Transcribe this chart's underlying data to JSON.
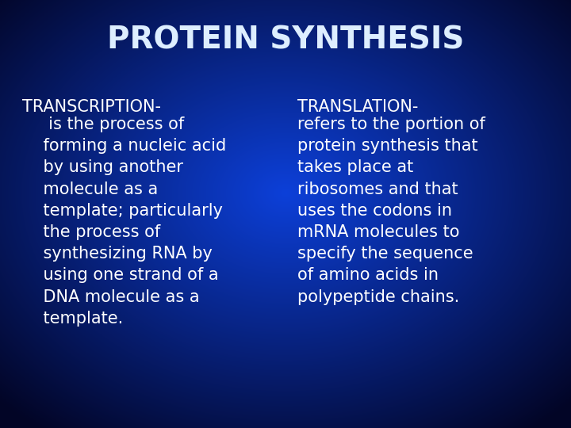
{
  "title": "PROTEIN SYNTHESIS",
  "title_fontsize": 28,
  "title_color": "#DDEEFF",
  "title_fontweight": "bold",
  "left_heading": "TRANSCRIPTION-",
  "left_body": "     is the process of\n    forming a nucleic acid\n    by using another\n    molecule as a\n    template; particularly\n    the process of\n    synthesizing RNA by\n    using one strand of a\n    DNA molecule as a\n    template.",
  "right_heading": "TRANSLATION-",
  "right_body": "refers to the portion of\nprotein synthesis that\ntakes place at\nribosomes and that\nuses the codons in\nmRNA molecules to\nspecify the sequence\nof amino acids in\npolypeptide chains.",
  "body_fontsize": 15,
  "heading_fontsize": 15,
  "text_color": "#FFFFFF",
  "figwidth": 7.2,
  "figheight": 5.4,
  "dpi": 100
}
